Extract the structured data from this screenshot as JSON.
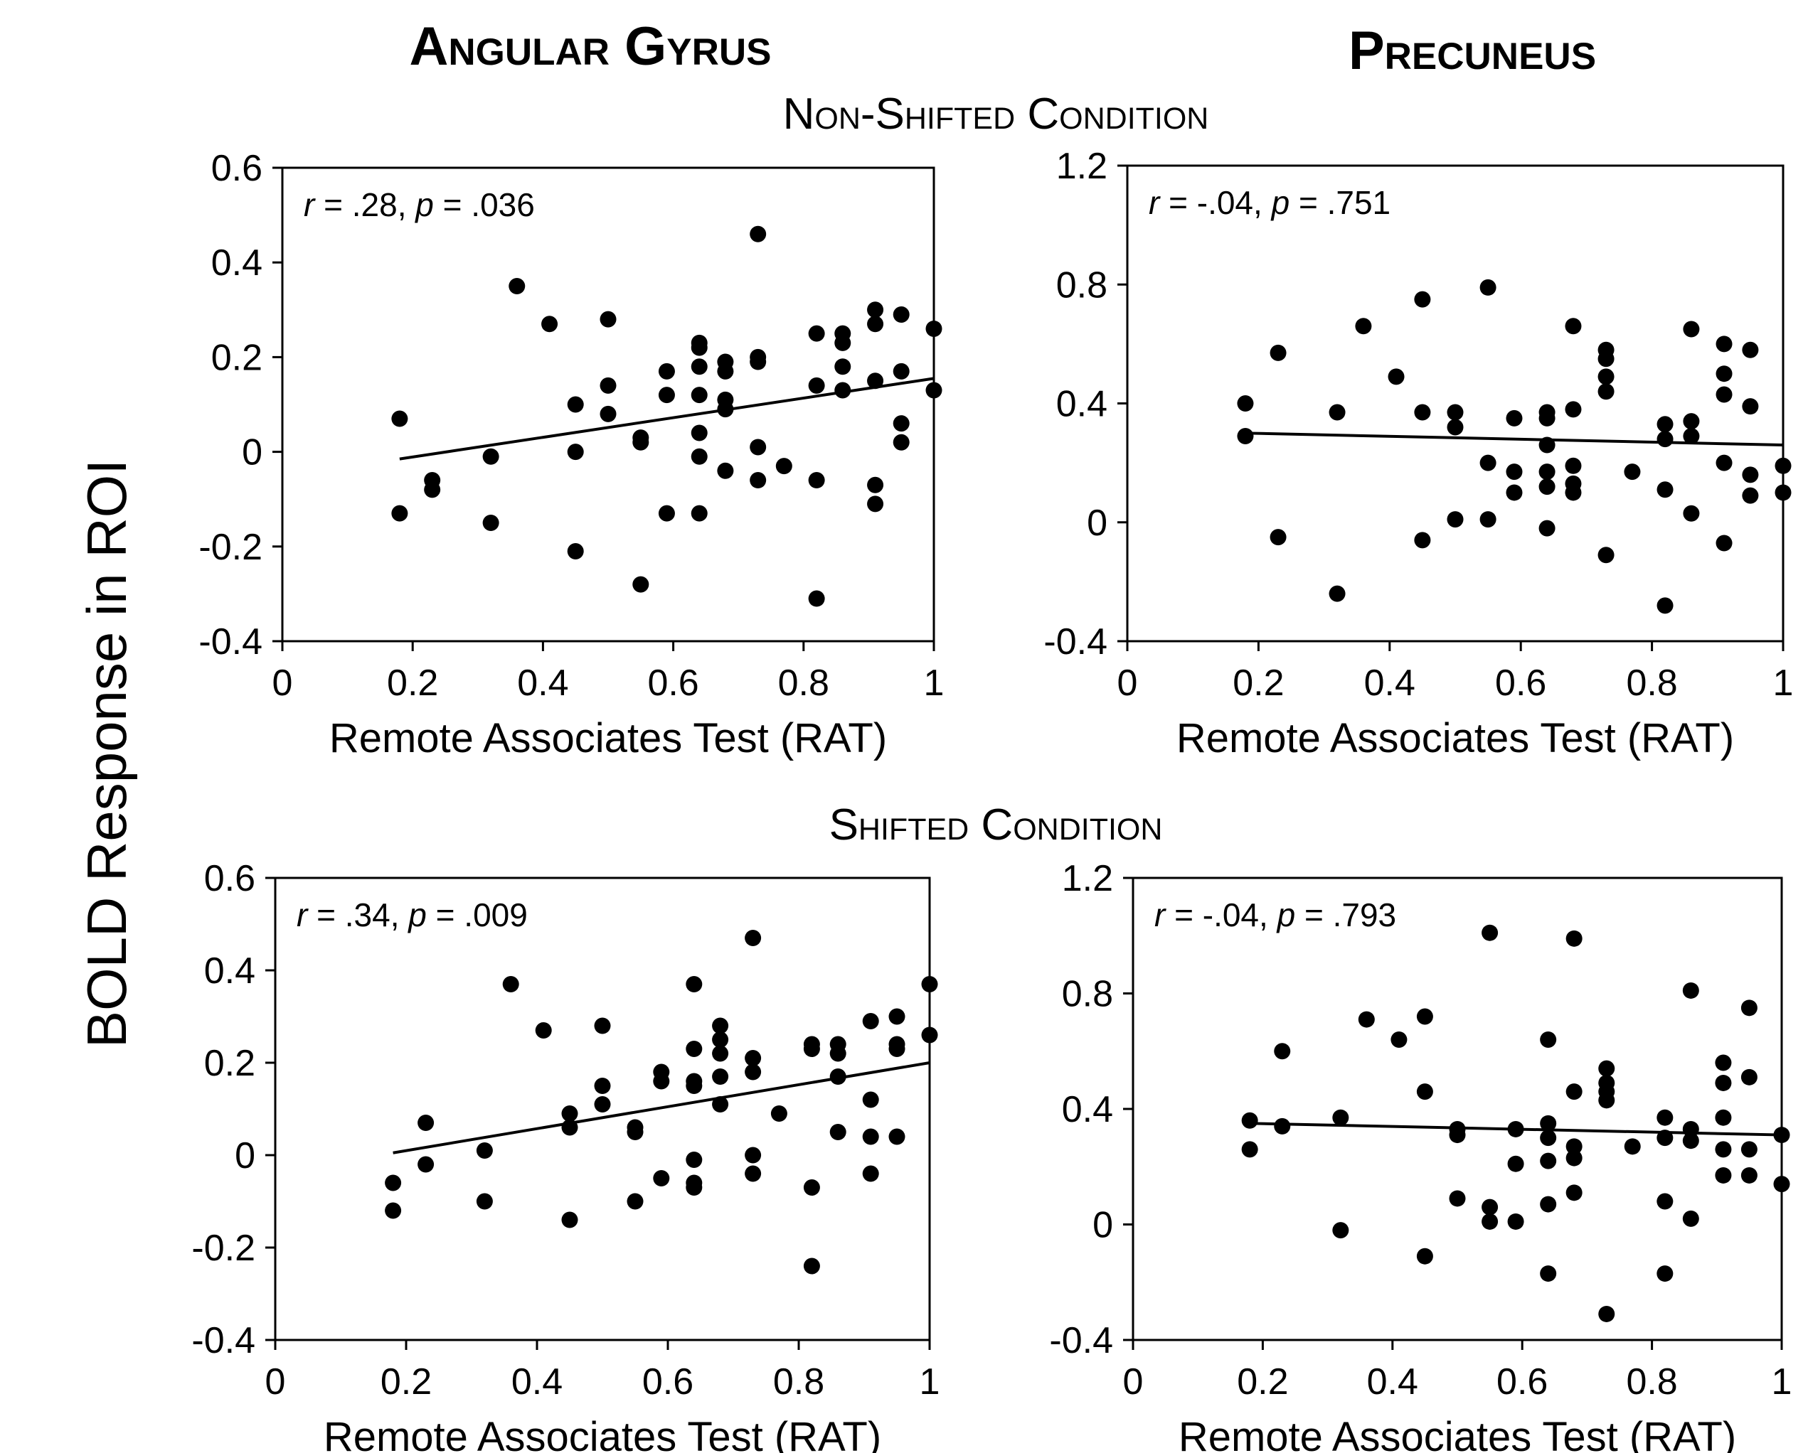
{
  "figure": {
    "column_titles": [
      "Angular Gyrus",
      "Precuneus"
    ],
    "condition_titles": [
      "Non-Shifted Condition",
      "Shifted Condition"
    ],
    "y_axis_label": "BOLD Response in ROI"
  },
  "chart_data": [
    {
      "type": "scatter",
      "region": "Angular Gyrus",
      "condition": "Non-Shifted Condition",
      "annotation": {
        "r_label": "r",
        "r_value": " = .28, ",
        "p_label": "p",
        "p_value": " = .036"
      },
      "xlabel": "Remote Associates Test (RAT)",
      "xlim": [
        0,
        1
      ],
      "xticks": [
        "0",
        "0.2",
        "0.4",
        "0.6",
        "0.8",
        "1"
      ],
      "ylim": [
        -0.4,
        0.6
      ],
      "yticks": [
        "-0.4",
        "-0.2",
        "0",
        "0.2",
        "0.4",
        "0.6"
      ],
      "grid": false,
      "trendline": {
        "x": [
          0.18,
          1.0
        ],
        "y": [
          -0.015,
          0.155
        ]
      },
      "points": [
        [
          0.18,
          0.07
        ],
        [
          0.18,
          -0.13
        ],
        [
          0.23,
          -0.06
        ],
        [
          0.23,
          -0.08
        ],
        [
          0.32,
          -0.01
        ],
        [
          0.32,
          -0.15
        ],
        [
          0.36,
          0.35
        ],
        [
          0.41,
          0.27
        ],
        [
          0.45,
          0.1
        ],
        [
          0.45,
          0.0
        ],
        [
          0.45,
          -0.21
        ],
        [
          0.5,
          0.28
        ],
        [
          0.5,
          0.14
        ],
        [
          0.5,
          0.08
        ],
        [
          0.55,
          0.03
        ],
        [
          0.55,
          0.02
        ],
        [
          0.55,
          -0.28
        ],
        [
          0.59,
          0.17
        ],
        [
          0.59,
          0.12
        ],
        [
          0.59,
          -0.13
        ],
        [
          0.64,
          0.23
        ],
        [
          0.64,
          0.22
        ],
        [
          0.64,
          0.18
        ],
        [
          0.64,
          0.12
        ],
        [
          0.64,
          0.04
        ],
        [
          0.64,
          -0.01
        ],
        [
          0.64,
          -0.13
        ],
        [
          0.68,
          0.19
        ],
        [
          0.68,
          0.17
        ],
        [
          0.68,
          0.11
        ],
        [
          0.68,
          0.09
        ],
        [
          0.68,
          -0.04
        ],
        [
          0.73,
          0.46
        ],
        [
          0.73,
          0.2
        ],
        [
          0.73,
          0.19
        ],
        [
          0.73,
          0.01
        ],
        [
          0.73,
          -0.06
        ],
        [
          0.77,
          -0.03
        ],
        [
          0.82,
          0.25
        ],
        [
          0.82,
          0.14
        ],
        [
          0.82,
          -0.06
        ],
        [
          0.82,
          -0.31
        ],
        [
          0.86,
          0.25
        ],
        [
          0.86,
          0.23
        ],
        [
          0.86,
          0.18
        ],
        [
          0.86,
          0.13
        ],
        [
          0.91,
          0.3
        ],
        [
          0.91,
          0.27
        ],
        [
          0.91,
          0.15
        ],
        [
          0.91,
          -0.07
        ],
        [
          0.91,
          -0.11
        ],
        [
          0.95,
          0.29
        ],
        [
          0.95,
          0.17
        ],
        [
          0.95,
          0.06
        ],
        [
          0.95,
          0.02
        ],
        [
          1.0,
          0.26
        ],
        [
          1.0,
          0.13
        ]
      ]
    },
    {
      "type": "scatter",
      "region": "Precuneus",
      "condition": "Non-Shifted Condition",
      "annotation": {
        "r_label": "r",
        "r_value": " = -.04, ",
        "p_label": "p",
        "p_value": " = .751"
      },
      "xlabel": "Remote Associates Test (RAT)",
      "xlim": [
        0,
        1
      ],
      "xticks": [
        "0",
        "0.2",
        "0.4",
        "0.6",
        "0.8",
        "1"
      ],
      "ylim": [
        -0.4,
        1.2
      ],
      "yticks": [
        "-0.4",
        "0",
        "0.4",
        "0.8",
        "1.2"
      ],
      "grid": false,
      "trendline": {
        "x": [
          0.18,
          1.0
        ],
        "y": [
          0.3,
          0.26
        ]
      },
      "points": [
        [
          0.18,
          0.4
        ],
        [
          0.18,
          0.29
        ],
        [
          0.23,
          0.57
        ],
        [
          0.23,
          -0.05
        ],
        [
          0.32,
          0.37
        ],
        [
          0.32,
          -0.24
        ],
        [
          0.36,
          0.66
        ],
        [
          0.41,
          0.49
        ],
        [
          0.45,
          0.75
        ],
        [
          0.45,
          0.37
        ],
        [
          0.45,
          -0.06
        ],
        [
          0.5,
          0.37
        ],
        [
          0.5,
          0.32
        ],
        [
          0.5,
          0.01
        ],
        [
          0.55,
          0.79
        ],
        [
          0.55,
          0.2
        ],
        [
          0.55,
          0.01
        ],
        [
          0.59,
          0.35
        ],
        [
          0.59,
          0.17
        ],
        [
          0.59,
          0.1
        ],
        [
          0.64,
          0.37
        ],
        [
          0.64,
          0.35
        ],
        [
          0.64,
          0.26
        ],
        [
          0.64,
          0.17
        ],
        [
          0.64,
          0.12
        ],
        [
          0.64,
          -0.02
        ],
        [
          0.68,
          0.66
        ],
        [
          0.68,
          0.38
        ],
        [
          0.68,
          0.19
        ],
        [
          0.68,
          0.13
        ],
        [
          0.68,
          0.1
        ],
        [
          0.73,
          0.58
        ],
        [
          0.73,
          0.55
        ],
        [
          0.73,
          0.49
        ],
        [
          0.73,
          0.44
        ],
        [
          0.73,
          -0.11
        ],
        [
          0.77,
          0.17
        ],
        [
          0.82,
          0.33
        ],
        [
          0.82,
          0.28
        ],
        [
          0.82,
          0.11
        ],
        [
          0.82,
          -0.28
        ],
        [
          0.86,
          0.65
        ],
        [
          0.86,
          0.34
        ],
        [
          0.86,
          0.29
        ],
        [
          0.86,
          0.03
        ],
        [
          0.91,
          0.6
        ],
        [
          0.91,
          0.5
        ],
        [
          0.91,
          0.43
        ],
        [
          0.91,
          0.2
        ],
        [
          0.91,
          -0.07
        ],
        [
          0.95,
          0.58
        ],
        [
          0.95,
          0.39
        ],
        [
          0.95,
          0.16
        ],
        [
          0.95,
          0.09
        ],
        [
          1.0,
          0.19
        ],
        [
          1.0,
          0.1
        ]
      ]
    },
    {
      "type": "scatter",
      "region": "Angular Gyrus",
      "condition": "Shifted Condition",
      "annotation": {
        "r_label": "r",
        "r_value": " = .34, ",
        "p_label": "p",
        "p_value": " = .009"
      },
      "xlabel": "Remote Associates Test (RAT)",
      "xlim": [
        0,
        1
      ],
      "xticks": [
        "0",
        "0.2",
        "0.4",
        "0.6",
        "0.8",
        "1"
      ],
      "ylim": [
        -0.4,
        0.6
      ],
      "yticks": [
        "-0.4",
        "-0.2",
        "0",
        "0.2",
        "0.4",
        "0.6"
      ],
      "grid": false,
      "trendline": {
        "x": [
          0.18,
          1.0
        ],
        "y": [
          0.005,
          0.2
        ]
      },
      "points": [
        [
          0.18,
          -0.06
        ],
        [
          0.18,
          -0.12
        ],
        [
          0.23,
          0.07
        ],
        [
          0.23,
          -0.02
        ],
        [
          0.32,
          0.01
        ],
        [
          0.32,
          -0.1
        ],
        [
          0.36,
          0.37
        ],
        [
          0.41,
          0.27
        ],
        [
          0.45,
          0.09
        ],
        [
          0.45,
          0.06
        ],
        [
          0.45,
          -0.14
        ],
        [
          0.5,
          0.28
        ],
        [
          0.5,
          0.15
        ],
        [
          0.5,
          0.11
        ],
        [
          0.55,
          0.06
        ],
        [
          0.55,
          0.05
        ],
        [
          0.55,
          -0.1
        ],
        [
          0.59,
          0.18
        ],
        [
          0.59,
          0.16
        ],
        [
          0.59,
          -0.05
        ],
        [
          0.64,
          0.37
        ],
        [
          0.64,
          0.23
        ],
        [
          0.64,
          0.16
        ],
        [
          0.64,
          0.15
        ],
        [
          0.64,
          -0.01
        ],
        [
          0.64,
          -0.06
        ],
        [
          0.64,
          -0.07
        ],
        [
          0.68,
          0.28
        ],
        [
          0.68,
          0.25
        ],
        [
          0.68,
          0.22
        ],
        [
          0.68,
          0.17
        ],
        [
          0.68,
          0.11
        ],
        [
          0.73,
          0.47
        ],
        [
          0.73,
          0.21
        ],
        [
          0.73,
          0.18
        ],
        [
          0.73,
          0.0
        ],
        [
          0.73,
          -0.04
        ],
        [
          0.77,
          0.09
        ],
        [
          0.82,
          0.24
        ],
        [
          0.82,
          0.23
        ],
        [
          0.82,
          -0.07
        ],
        [
          0.82,
          -0.24
        ],
        [
          0.86,
          0.24
        ],
        [
          0.86,
          0.22
        ],
        [
          0.86,
          0.17
        ],
        [
          0.86,
          0.05
        ],
        [
          0.91,
          0.29
        ],
        [
          0.91,
          0.12
        ],
        [
          0.91,
          0.04
        ],
        [
          0.91,
          -0.04
        ],
        [
          0.95,
          0.3
        ],
        [
          0.95,
          0.24
        ],
        [
          0.95,
          0.23
        ],
        [
          0.95,
          0.04
        ],
        [
          1.0,
          0.37
        ],
        [
          1.0,
          0.26
        ]
      ]
    },
    {
      "type": "scatter",
      "region": "Precuneus",
      "condition": "Shifted Condition",
      "annotation": {
        "r_label": "r",
        "r_value": " = -.04, ",
        "p_label": "p",
        "p_value": " = .793"
      },
      "xlabel": "Remote Associates Test (RAT)",
      "xlim": [
        0,
        1
      ],
      "xticks": [
        "0",
        "0.2",
        "0.4",
        "0.6",
        "0.8",
        "1"
      ],
      "ylim": [
        -0.4,
        1.2
      ],
      "yticks": [
        "-0.4",
        "0",
        "0.4",
        "0.8",
        "1.2"
      ],
      "grid": false,
      "trendline": {
        "x": [
          0.18,
          1.0
        ],
        "y": [
          0.35,
          0.31
        ]
      },
      "points": [
        [
          0.18,
          0.36
        ],
        [
          0.18,
          0.26
        ],
        [
          0.23,
          0.6
        ],
        [
          0.23,
          0.34
        ],
        [
          0.32,
          0.37
        ],
        [
          0.32,
          -0.02
        ],
        [
          0.36,
          0.71
        ],
        [
          0.41,
          0.64
        ],
        [
          0.45,
          0.72
        ],
        [
          0.45,
          0.46
        ],
        [
          0.45,
          -0.11
        ],
        [
          0.5,
          0.33
        ],
        [
          0.5,
          0.31
        ],
        [
          0.5,
          0.09
        ],
        [
          0.55,
          1.01
        ],
        [
          0.55,
          0.06
        ],
        [
          0.55,
          0.01
        ],
        [
          0.59,
          0.33
        ],
        [
          0.59,
          0.21
        ],
        [
          0.59,
          0.01
        ],
        [
          0.64,
          0.64
        ],
        [
          0.64,
          0.35
        ],
        [
          0.64,
          0.3
        ],
        [
          0.64,
          0.22
        ],
        [
          0.64,
          0.07
        ],
        [
          0.64,
          -0.17
        ],
        [
          0.68,
          0.99
        ],
        [
          0.68,
          0.46
        ],
        [
          0.68,
          0.27
        ],
        [
          0.68,
          0.23
        ],
        [
          0.68,
          0.11
        ],
        [
          0.73,
          0.54
        ],
        [
          0.73,
          0.49
        ],
        [
          0.73,
          0.46
        ],
        [
          0.73,
          0.43
        ],
        [
          0.73,
          -0.31
        ],
        [
          0.77,
          0.27
        ],
        [
          0.82,
          0.37
        ],
        [
          0.82,
          0.3
        ],
        [
          0.82,
          0.08
        ],
        [
          0.82,
          -0.17
        ],
        [
          0.86,
          0.81
        ],
        [
          0.86,
          0.33
        ],
        [
          0.86,
          0.29
        ],
        [
          0.86,
          0.02
        ],
        [
          0.91,
          0.56
        ],
        [
          0.91,
          0.49
        ],
        [
          0.91,
          0.37
        ],
        [
          0.91,
          0.26
        ],
        [
          0.91,
          0.17
        ],
        [
          0.95,
          0.75
        ],
        [
          0.95,
          0.51
        ],
        [
          0.95,
          0.26
        ],
        [
          0.95,
          0.17
        ],
        [
          1.0,
          0.31
        ],
        [
          1.0,
          0.14
        ]
      ]
    }
  ]
}
